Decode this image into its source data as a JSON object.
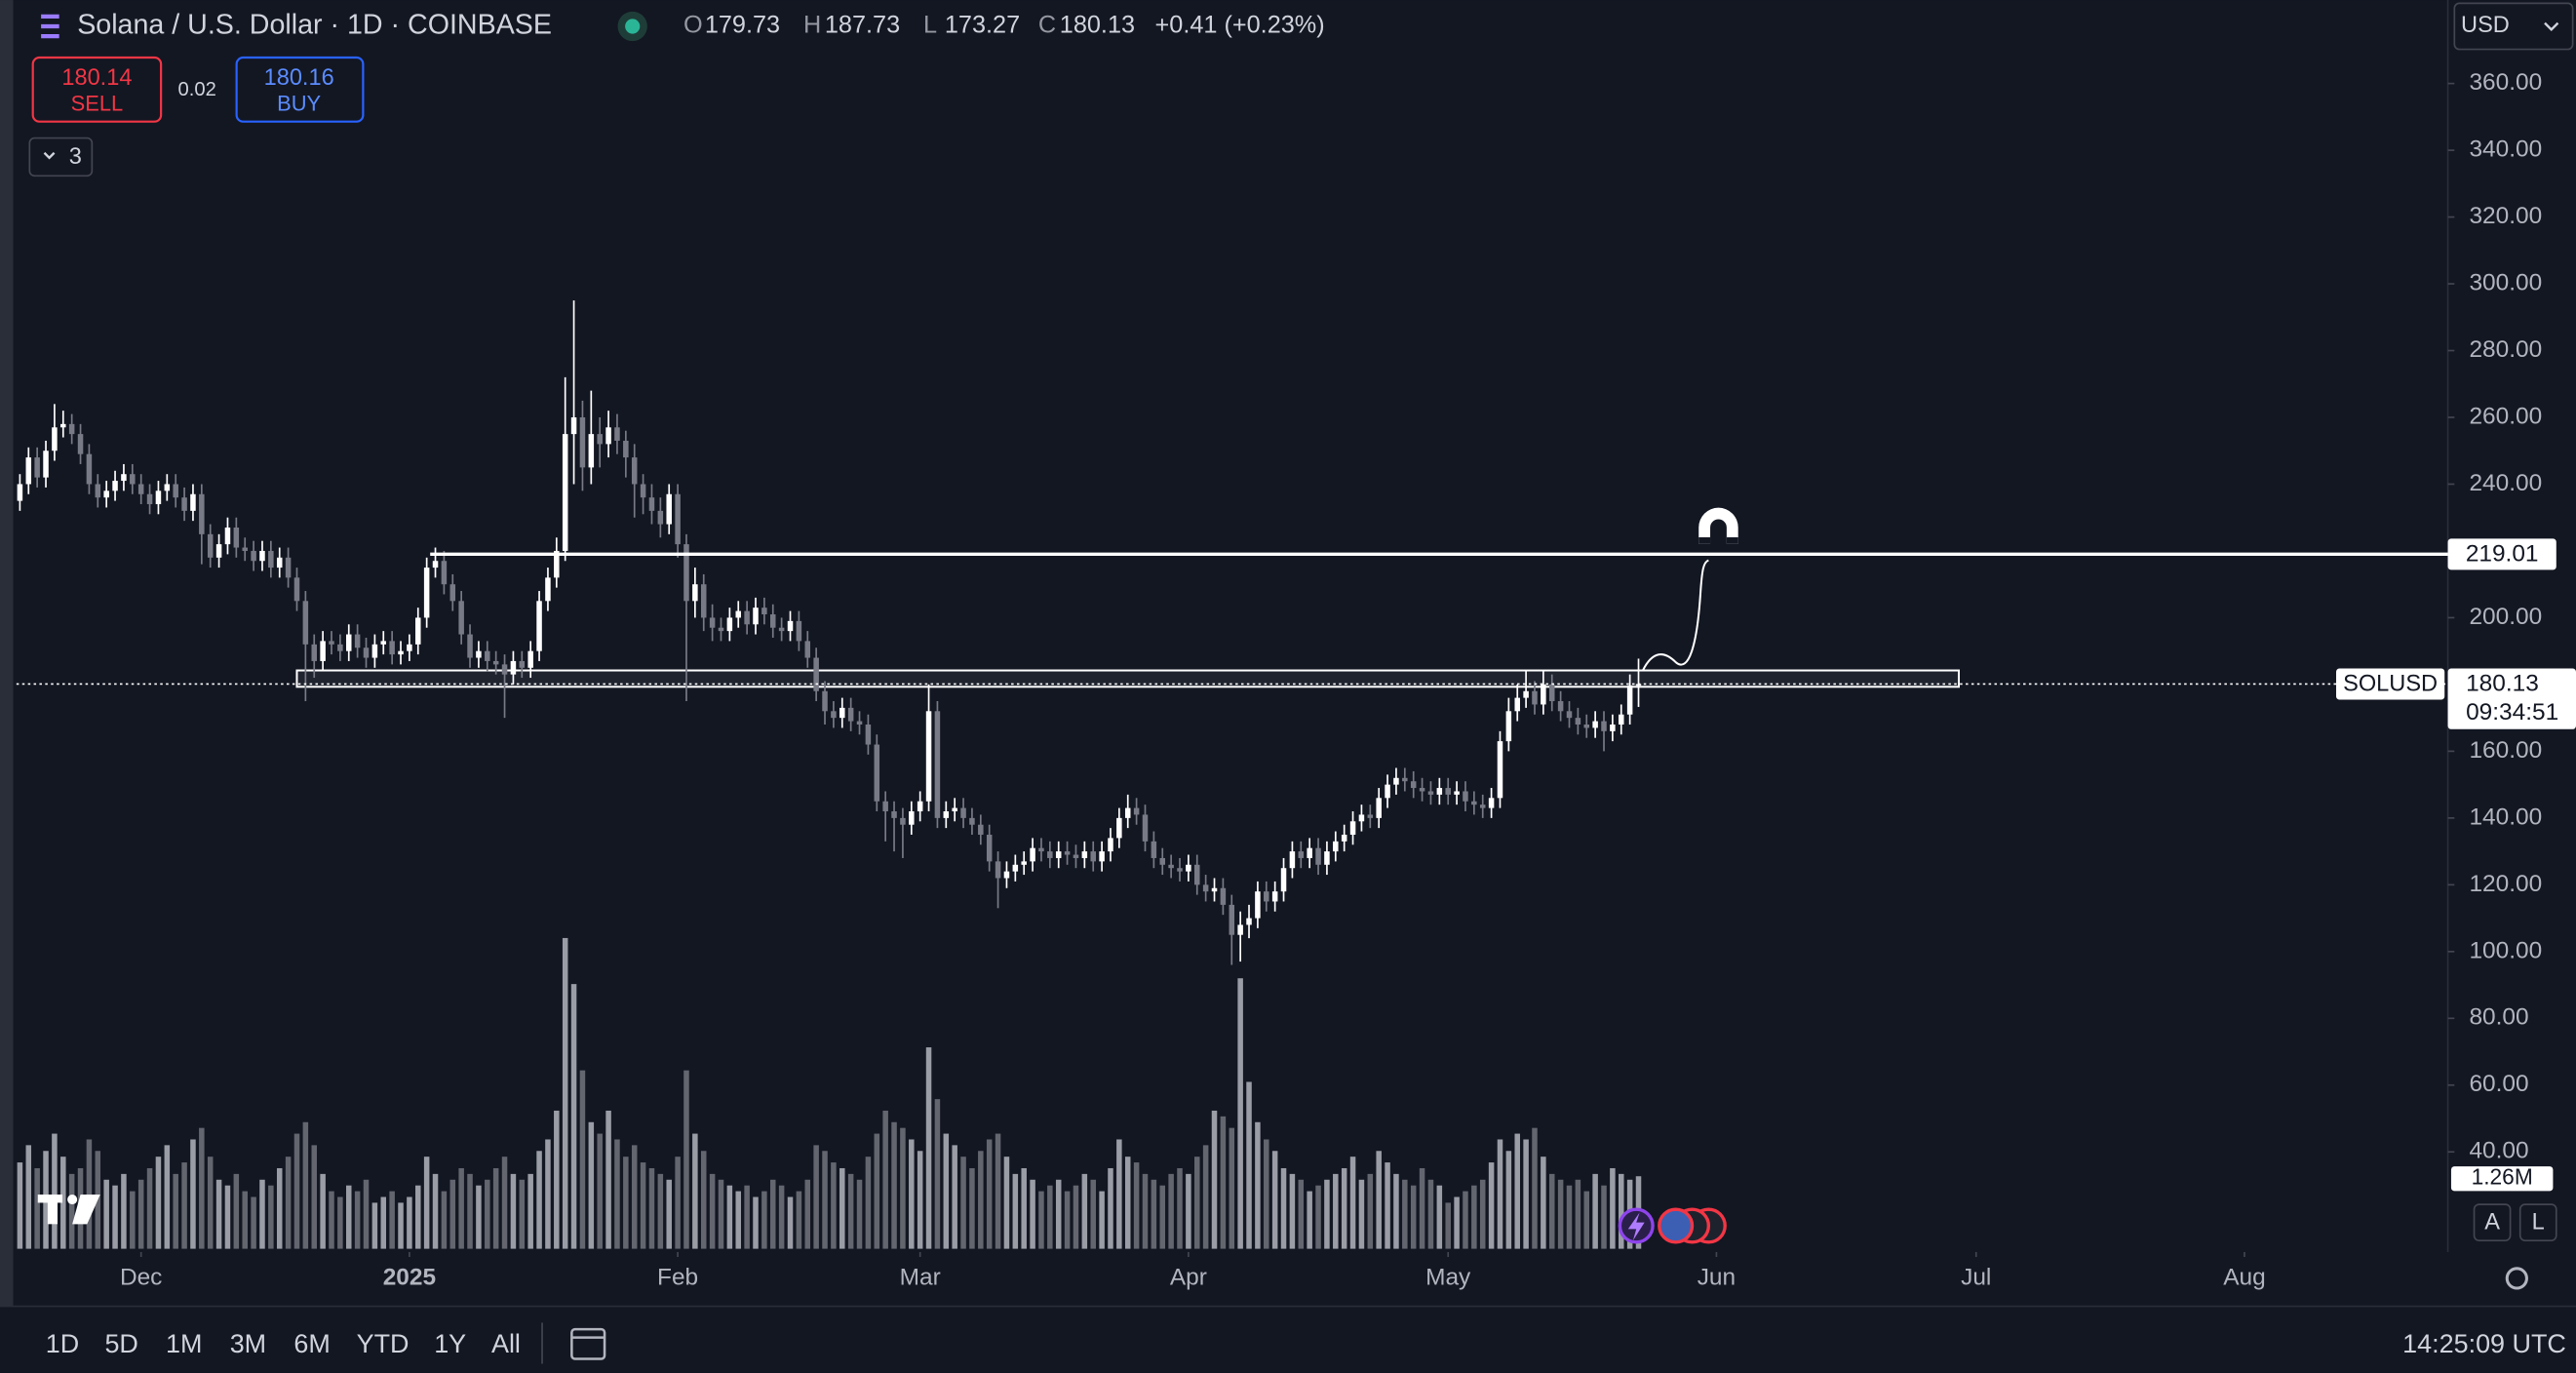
{
  "header": {
    "title": "Solana / U.S. Dollar · 1D · COINBASE",
    "ohlc": [
      {
        "label": "O",
        "value": 179.73
      },
      {
        "label": "H",
        "value": 187.73
      },
      {
        "label": "L",
        "value": 173.27
      },
      {
        "label": "C",
        "value": 180.13
      }
    ],
    "change": "+0.41 (+0.23%)",
    "currency": "USD"
  },
  "trade": {
    "sell": {
      "price": 180.14,
      "label": "SELL"
    },
    "spread": 0.02,
    "buy": {
      "price": 180.16,
      "label": "BUY"
    }
  },
  "indicators_count": 3,
  "scale_buttons": [
    "A",
    "L"
  ],
  "footer": {
    "ranges": [
      "1D",
      "5D",
      "1M",
      "3M",
      "6M",
      "YTD",
      "1Y",
      "All"
    ],
    "clock": "14:25:09 UTC"
  },
  "chart_data": {
    "type": "candlestick",
    "xlim": [
      -0.4,
      280.5
    ],
    "xticks": [
      {
        "value": 14,
        "label": "Dec"
      },
      {
        "value": 45,
        "label": "2025"
      },
      {
        "value": 76,
        "label": "Feb"
      },
      {
        "value": 104,
        "label": "Mar"
      },
      {
        "value": 135,
        "label": "Apr"
      },
      {
        "value": 165,
        "label": "May"
      },
      {
        "value": 196,
        "label": "Jun"
      },
      {
        "value": 226,
        "label": "Jul"
      },
      {
        "value": 257,
        "label": "Aug"
      }
    ],
    "ylim": [
      10,
      385
    ],
    "yticks": [
      {
        "value": 40,
        "label": "40.00"
      },
      {
        "value": 60,
        "label": "60.00"
      },
      {
        "value": 80,
        "label": "80.00"
      },
      {
        "value": 100,
        "label": "100.00"
      },
      {
        "value": 120,
        "label": "120.00"
      },
      {
        "value": 140,
        "label": "140.00"
      },
      {
        "value": 160,
        "label": "160.00"
      },
      {
        "value": 180,
        "label": "180.00"
      },
      {
        "value": 200,
        "label": "200.00"
      },
      {
        "value": 220,
        "label": "220.00"
      },
      {
        "value": 240,
        "label": "240.00"
      },
      {
        "value": 260,
        "label": "260.00"
      },
      {
        "value": 280,
        "label": "280.00"
      },
      {
        "value": 300,
        "label": "300.00"
      },
      {
        "value": 320,
        "label": "320.00"
      },
      {
        "value": 340,
        "label": "340.00"
      },
      {
        "value": 360,
        "label": "360.00"
      }
    ],
    "grid": false,
    "up_color": "#ffffff",
    "down_color": "#787b86",
    "volume_colors": {
      "up": "#9a9da6",
      "down": "#63666f"
    },
    "volume_lim": [
      0,
      21.7
    ],
    "open": [
      235,
      240,
      248,
      242,
      250,
      257,
      258,
      255,
      249,
      240,
      236,
      238,
      241,
      243,
      240,
      237,
      234,
      238,
      240,
      236,
      232,
      237,
      225,
      218,
      222,
      227,
      221,
      220,
      217,
      220,
      215,
      218,
      212,
      205,
      192,
      187,
      193,
      192,
      190,
      195,
      191,
      188,
      192,
      193,
      189,
      190,
      192,
      200,
      215,
      217,
      210,
      205,
      195,
      188,
      190,
      187,
      186,
      183,
      187,
      185,
      190,
      205,
      212,
      220,
      255,
      260,
      245,
      255,
      252,
      257,
      253,
      248,
      240,
      236,
      232,
      228,
      237,
      222,
      205,
      210,
      200,
      197,
      196,
      200,
      202,
      198,
      203,
      201,
      197,
      196,
      199,
      193,
      188,
      178,
      172,
      170,
      173,
      169,
      168,
      162,
      145,
      142,
      140,
      138,
      142,
      145,
      172,
      140,
      142,
      143,
      140,
      138,
      135,
      127,
      122,
      124,
      126,
      127,
      131,
      130,
      128,
      130,
      129,
      128,
      130,
      127,
      130,
      134,
      140,
      143,
      141,
      133,
      128,
      126,
      125,
      124,
      126,
      120,
      118,
      119,
      114,
      105,
      108,
      110,
      118,
      115,
      118,
      125,
      130,
      128,
      131,
      126,
      130,
      133,
      135,
      139,
      141,
      140,
      146,
      150,
      152,
      151,
      149,
      148,
      147,
      149,
      147,
      148,
      145,
      144,
      143,
      146,
      163,
      172,
      176,
      178,
      174,
      180,
      175,
      172,
      170,
      168,
      167,
      169,
      166,
      168,
      171,
      179.73
    ],
    "high": [
      243,
      251,
      251,
      253,
      264,
      262,
      261,
      258,
      252,
      243,
      241,
      244,
      246,
      246,
      243,
      240,
      241,
      243,
      243,
      239,
      240,
      240,
      228,
      225,
      230,
      230,
      224,
      223,
      223,
      223,
      221,
      221,
      215,
      208,
      195,
      196,
      196,
      195,
      198,
      198,
      194,
      195,
      196,
      196,
      193,
      195,
      203,
      218,
      221,
      220,
      213,
      208,
      198,
      193,
      193,
      190,
      189,
      190,
      190,
      193,
      208,
      215,
      224,
      272,
      295,
      265,
      268,
      260,
      262,
      261,
      256,
      252,
      243,
      240,
      236,
      240,
      240,
      225,
      215,
      213,
      204,
      200,
      203,
      205,
      205,
      206,
      206,
      204,
      200,
      202,
      202,
      196,
      191,
      181,
      175,
      176,
      176,
      172,
      171,
      165,
      148,
      145,
      143,
      145,
      148,
      180,
      175,
      145,
      146,
      146,
      143,
      141,
      138,
      130,
      127,
      129,
      130,
      134,
      134,
      133,
      133,
      133,
      132,
      133,
      133,
      133,
      137,
      143,
      147,
      146,
      144,
      136,
      131,
      129,
      128,
      129,
      129,
      123,
      122,
      122,
      117,
      112,
      114,
      121,
      121,
      121,
      128,
      133,
      133,
      134,
      134,
      133,
      136,
      138,
      142,
      144,
      144,
      149,
      153,
      155,
      155,
      154,
      152,
      151,
      152,
      152,
      151,
      151,
      148,
      147,
      149,
      166,
      176,
      180,
      184,
      181,
      184,
      183,
      178,
      175,
      173,
      171,
      172,
      172,
      171,
      174,
      183,
      187.73
    ],
    "low": [
      232,
      237,
      239,
      239,
      247,
      254,
      252,
      246,
      237,
      233,
      233,
      235,
      238,
      237,
      234,
      231,
      231,
      235,
      233,
      229,
      229,
      216,
      215,
      215,
      219,
      218,
      217,
      214,
      214,
      212,
      212,
      209,
      202,
      175,
      182,
      184,
      189,
      187,
      187,
      188,
      185,
      185,
      189,
      186,
      186,
      187,
      189,
      197,
      212,
      207,
      202,
      192,
      185,
      185,
      184,
      183,
      170,
      180,
      182,
      182,
      187,
      202,
      209,
      217,
      240,
      238,
      240,
      245,
      248,
      249,
      242,
      230,
      231,
      228,
      224,
      225,
      218,
      175,
      200,
      196,
      193,
      193,
      193,
      197,
      195,
      195,
      198,
      194,
      193,
      193,
      190,
      185,
      175,
      168,
      167,
      167,
      166,
      165,
      159,
      142,
      133,
      130,
      128,
      135,
      139,
      142,
      137,
      137,
      139,
      137,
      135,
      132,
      124,
      113,
      119,
      121,
      123,
      124,
      127,
      125,
      125,
      126,
      125,
      125,
      124,
      124,
      127,
      131,
      137,
      138,
      130,
      125,
      123,
      122,
      121,
      121,
      117,
      115,
      115,
      111,
      96,
      97,
      104,
      107,
      112,
      112,
      115,
      122,
      125,
      125,
      123,
      123,
      127,
      130,
      132,
      136,
      137,
      137,
      143,
      147,
      148,
      146,
      145,
      144,
      144,
      144,
      144,
      142,
      141,
      140,
      140,
      143,
      160,
      169,
      173,
      171,
      171,
      172,
      169,
      167,
      165,
      164,
      164,
      160,
      163,
      165,
      168,
      173.27
    ],
    "close": [
      240,
      248,
      242,
      250,
      257,
      258,
      255,
      249,
      240,
      236,
      238,
      241,
      243,
      240,
      237,
      234,
      238,
      240,
      236,
      232,
      237,
      225,
      218,
      222,
      227,
      221,
      220,
      217,
      220,
      215,
      218,
      212,
      205,
      192,
      187,
      193,
      192,
      190,
      195,
      191,
      188,
      192,
      193,
      189,
      190,
      192,
      200,
      215,
      217,
      210,
      205,
      195,
      188,
      190,
      187,
      186,
      183,
      187,
      185,
      190,
      205,
      212,
      220,
      255,
      260,
      245,
      255,
      252,
      257,
      253,
      248,
      240,
      236,
      232,
      228,
      237,
      222,
      205,
      210,
      200,
      197,
      196,
      200,
      202,
      198,
      203,
      201,
      197,
      196,
      199,
      193,
      188,
      178,
      172,
      170,
      173,
      169,
      168,
      162,
      145,
      142,
      140,
      138,
      142,
      145,
      172,
      140,
      142,
      143,
      140,
      138,
      135,
      127,
      122,
      124,
      126,
      127,
      131,
      130,
      128,
      130,
      129,
      128,
      130,
      127,
      130,
      134,
      140,
      143,
      141,
      133,
      128,
      126,
      125,
      124,
      126,
      120,
      118,
      119,
      114,
      105,
      108,
      110,
      118,
      115,
      118,
      125,
      130,
      128,
      131,
      126,
      130,
      133,
      135,
      139,
      141,
      140,
      146,
      150,
      152,
      151,
      149,
      148,
      147,
      149,
      147,
      148,
      145,
      144,
      143,
      146,
      163,
      172,
      176,
      178,
      174,
      180,
      175,
      172,
      170,
      168,
      167,
      169,
      166,
      168,
      171,
      179.72,
      180.13
    ],
    "volume": [
      1.5,
      1.8,
      1.4,
      1.7,
      2.0,
      1.6,
      1.3,
      1.4,
      1.9,
      1.7,
      1.2,
      1.1,
      1.3,
      1.0,
      1.2,
      1.4,
      1.6,
      1.8,
      1.3,
      1.5,
      1.9,
      2.1,
      1.6,
      1.2,
      1.1,
      1.3,
      1.0,
      0.9,
      1.2,
      1.1,
      1.4,
      1.6,
      2.0,
      2.2,
      1.8,
      1.3,
      1.0,
      0.9,
      1.1,
      1.0,
      1.2,
      0.8,
      0.9,
      1.0,
      0.8,
      0.9,
      1.1,
      1.6,
      1.3,
      1.0,
      1.2,
      1.4,
      1.3,
      1.1,
      1.2,
      1.4,
      1.6,
      1.3,
      1.2,
      1.3,
      1.7,
      1.9,
      2.4,
      5.4,
      4.6,
      3.1,
      2.2,
      2.0,
      2.4,
      1.9,
      1.6,
      1.8,
      1.5,
      1.4,
      1.3,
      1.2,
      1.6,
      3.1,
      2.0,
      1.7,
      1.3,
      1.2,
      1.1,
      1.0,
      1.1,
      0.9,
      1.0,
      1.2,
      1.1,
      0.9,
      1.0,
      1.2,
      1.8,
      1.7,
      1.5,
      1.4,
      1.3,
      1.2,
      1.6,
      2.0,
      2.4,
      2.2,
      2.1,
      1.9,
      1.7,
      3.5,
      2.6,
      2.0,
      1.8,
      1.6,
      1.4,
      1.7,
      1.9,
      2.0,
      1.6,
      1.3,
      1.4,
      1.2,
      1.0,
      1.1,
      1.2,
      1.0,
      1.1,
      1.3,
      1.2,
      1.0,
      1.4,
      1.9,
      1.6,
      1.5,
      1.3,
      1.2,
      1.1,
      1.3,
      1.4,
      1.3,
      1.6,
      1.8,
      2.4,
      2.3,
      2.1,
      4.7,
      2.9,
      2.2,
      1.9,
      1.7,
      1.4,
      1.3,
      1.2,
      1.0,
      1.1,
      1.2,
      1.3,
      1.4,
      1.6,
      1.2,
      1.3,
      1.7,
      1.5,
      1.3,
      1.2,
      1.1,
      1.4,
      1.2,
      1.1,
      0.8,
      0.9,
      1.0,
      1.1,
      1.2,
      1.5,
      1.9,
      1.7,
      2.0,
      1.9,
      2.1,
      1.6,
      1.3,
      1.2,
      1.1,
      1.2,
      1.0,
      1.3,
      1.1,
      1.4,
      1.3,
      1.2,
      1.26
    ],
    "volume_last_label": "1.26M",
    "levels": [
      {
        "value": 219.01,
        "start": 47.4
      }
    ],
    "zone": {
      "low": 179.3,
      "high": 184.2,
      "start": 32,
      "end": 224
    },
    "last_price": {
      "symbol": "SOLUSD",
      "value": 180.13,
      "countdown": "09:34:51"
    }
  }
}
